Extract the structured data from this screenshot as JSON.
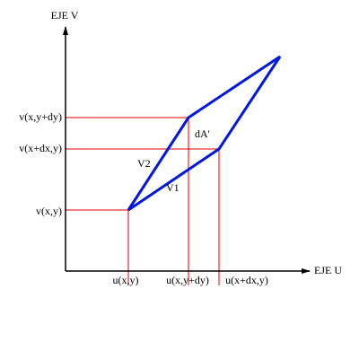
{
  "axes": {
    "y_label": "EJE V",
    "x_label": "EJE U"
  },
  "v_labels": [
    "v(x,y+dy)",
    "v(x+dx,y)",
    "v(x,y)"
  ],
  "u_labels": [
    "u(x,y)",
    "u(x,y+dy)",
    "u(x+dx,y)"
  ],
  "vectors": {
    "v1": "V1",
    "v2": "V2"
  },
  "area": "dA'"
}
